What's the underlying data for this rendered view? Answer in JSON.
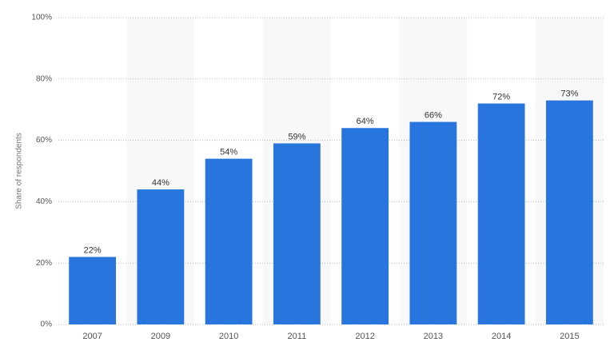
{
  "chart_data": {
    "type": "bar",
    "y_axis_label": "Share of respondents",
    "categories": [
      "2007",
      "2009",
      "2010",
      "2011",
      "2012",
      "2013",
      "2014",
      "2015"
    ],
    "values": [
      22,
      44,
      54,
      59,
      64,
      66,
      72,
      73
    ],
    "value_labels": [
      "22%",
      "44%",
      "54%",
      "59%",
      "64%",
      "66%",
      "72%",
      "73%"
    ],
    "color": "#2876dd",
    "ylim": [
      0,
      100
    ],
    "yticks": [
      {
        "value": 0,
        "label": "0%"
      },
      {
        "value": 20,
        "label": "20%"
      },
      {
        "value": 40,
        "label": "40%"
      },
      {
        "value": 60,
        "label": "60%"
      },
      {
        "value": 80,
        "label": "80%"
      },
      {
        "value": 100,
        "label": "100%"
      }
    ],
    "grid": true
  }
}
